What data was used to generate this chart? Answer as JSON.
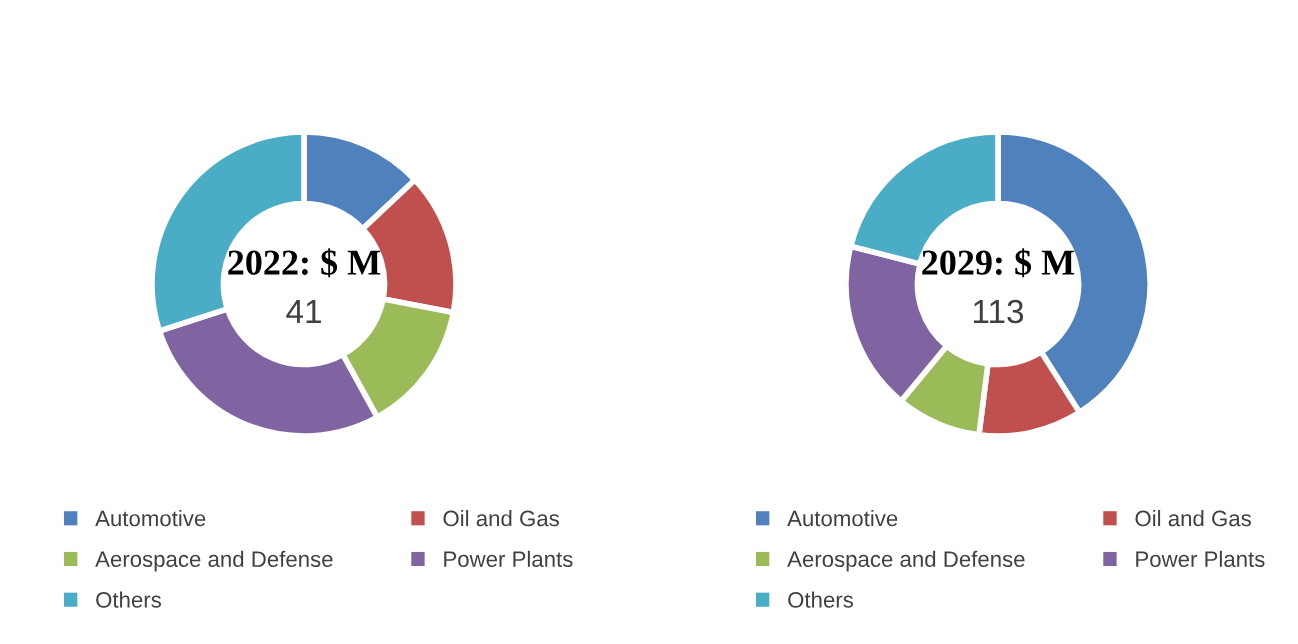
{
  "chart_data": [
    {
      "type": "donut",
      "categories": [
        "Automotive",
        "Oil and Gas",
        "Aerospace and Defense",
        "Power Plants",
        "Others"
      ],
      "values": [
        13,
        15,
        14,
        28,
        30
      ],
      "colors": [
        "#4f81bd",
        "#c0504d",
        "#9bbb59",
        "#8064a2",
        "#4bacc6"
      ],
      "annotations": [
        "2022: $ M",
        "41"
      ],
      "legend": "bottom"
    },
    {
      "type": "donut",
      "categories": [
        "Automotive",
        "Oil and Gas",
        "Aerospace and Defense",
        "Power Plants",
        "Others"
      ],
      "values": [
        41,
        11,
        9,
        18,
        21
      ],
      "colors": [
        "#4f81bd",
        "#c0504d",
        "#9bbb59",
        "#8064a2",
        "#4bacc6"
      ],
      "annotations": [
        "2029: $ M",
        "113"
      ],
      "legend": "bottom"
    }
  ]
}
